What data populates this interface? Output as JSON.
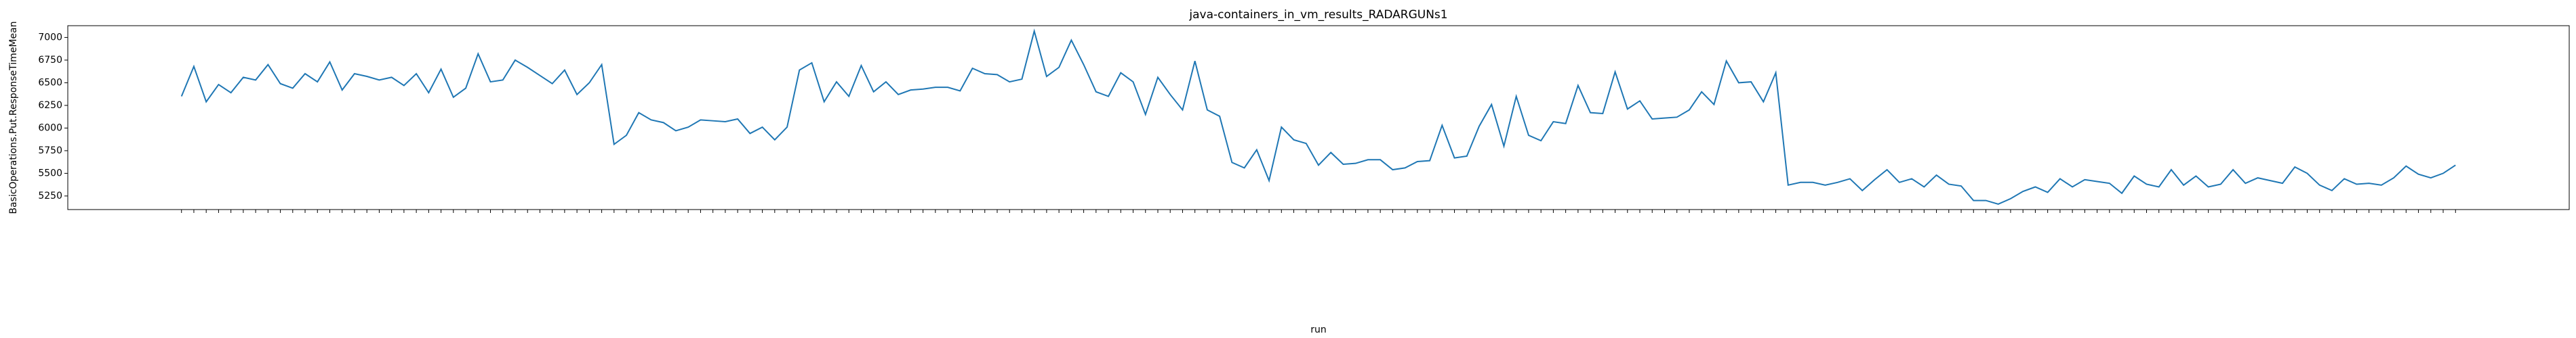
{
  "chart_data": {
    "type": "line",
    "title": "java-containers_in_vm_results_RADARGUNs1",
    "x_label": "run",
    "y_label": "BasicOperations.Put.ResponseTimeMean",
    "color": "#1f77b4",
    "ylim": [
      5100,
      7130
    ],
    "yticks": [
      5250,
      5500,
      5750,
      6000,
      6250,
      6500,
      6750,
      7000
    ],
    "values": [
      6350,
      6680,
      6290,
      6480,
      6390,
      6560,
      6530,
      6700,
      6490,
      6440,
      6600,
      6510,
      6730,
      6420,
      6600,
      6570,
      6530,
      6560,
      6470,
      6600,
      6390,
      6650,
      6340,
      6440,
      6820,
      6510,
      6530,
      6750,
      6670,
      6580,
      6490,
      6640,
      6370,
      6500,
      6700,
      5820,
      5920,
      6170,
      6090,
      6060,
      5970,
      6010,
      6090,
      6080,
      6070,
      6100,
      5940,
      6010,
      5870,
      6010,
      6640,
      6720,
      6290,
      6510,
      6350,
      6690,
      6400,
      6510,
      6370,
      6420,
      6430,
      6450,
      6450,
      6410,
      6660,
      6600,
      6590,
      6510,
      6540,
      7070,
      6570,
      6670,
      6970,
      6700,
      6400,
      6350,
      6610,
      6510,
      6150,
      6560,
      6370,
      6200,
      6740,
      6200,
      6130,
      5620,
      5560,
      5760,
      5420,
      6010,
      5870,
      5830,
      5590,
      5730,
      5600,
      5610,
      5650,
      5650,
      5540,
      5560,
      5630,
      5640,
      6030,
      5670,
      5690,
      6020,
      6260,
      5800,
      6350,
      5920,
      5860,
      6070,
      6050,
      6470,
      6170,
      6160,
      6620,
      6210,
      6300,
      6100,
      6110,
      6120,
      6200,
      6400,
      6260,
      6740,
      6500,
      6510,
      6290,
      6610,
      5370,
      5400,
      5400,
      5370,
      5400,
      5440,
      5310,
      5430,
      5540,
      5400,
      5440,
      5350,
      5480,
      5380,
      5360,
      5200,
      5200,
      5160,
      5220,
      5300,
      5350,
      5290,
      5440,
      5350,
      5430,
      5410,
      5390,
      5280,
      5470,
      5380,
      5350,
      5540,
      5370,
      5470,
      5350,
      5380,
      5540,
      5390,
      5450,
      5420,
      5390,
      5570,
      5500,
      5370,
      5310,
      5440,
      5380,
      5390,
      5370,
      5450,
      5580,
      5490,
      5450,
      5500,
      5590
    ]
  }
}
